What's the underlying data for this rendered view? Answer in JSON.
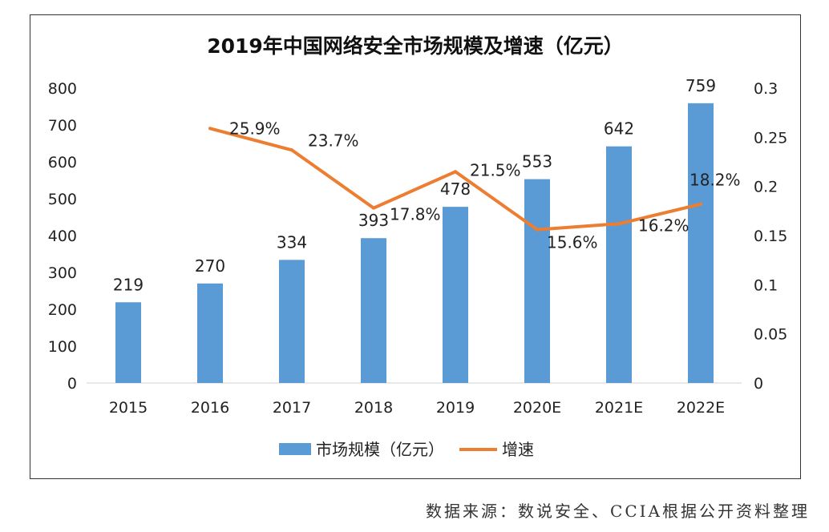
{
  "chart_data": {
    "type": "bar+line",
    "title": "2019年中国网络安全市场规模及增速（亿元）",
    "categories": [
      "2015",
      "2016",
      "2017",
      "2018",
      "2019",
      "2020E",
      "2021E",
      "2022E"
    ],
    "series": [
      {
        "name": "市场规模（亿元）",
        "type": "bar",
        "axis": "left",
        "color": "#5B9BD5",
        "values": [
          219,
          270,
          334,
          393,
          478,
          553,
          642,
          759
        ],
        "labels": [
          "219",
          "270",
          "334",
          "393",
          "478",
          "553",
          "642",
          "759"
        ]
      },
      {
        "name": "增速",
        "type": "line",
        "axis": "right",
        "color": "#ED7D31",
        "values": [
          null,
          0.259,
          0.237,
          0.178,
          0.215,
          0.156,
          0.162,
          0.182
        ],
        "labels": [
          "",
          "25.9%",
          "23.7%",
          "17.8%",
          "21.5%",
          "15.6%",
          "16.2%",
          "18.2%"
        ]
      }
    ],
    "y_left": {
      "range": [
        0,
        800
      ],
      "ticks": [
        "0",
        "100",
        "200",
        "300",
        "400",
        "500",
        "600",
        "700",
        "800"
      ]
    },
    "y_right": {
      "range": [
        0,
        0.3
      ],
      "ticks": [
        "0",
        "0.05",
        "0.1",
        "0.15",
        "0.2",
        "0.25",
        "0.3"
      ]
    },
    "grid": false,
    "legend": "bottom"
  },
  "source": "数据来源：数说安全、CCIA根据公开资料整理"
}
